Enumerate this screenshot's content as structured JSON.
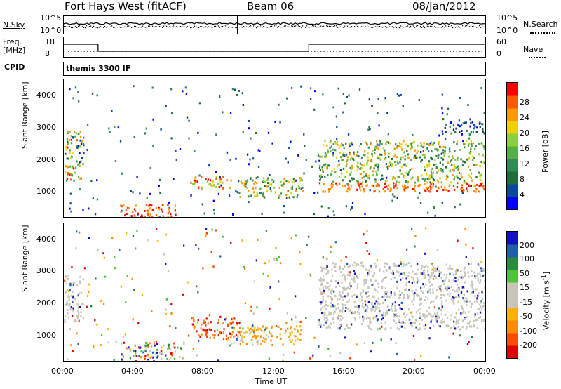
{
  "header": {
    "title": "Fort Hays West (fitACF)",
    "beam": "Beam 06",
    "date": "08/Jan/2012"
  },
  "top_strip": {
    "left_label_1": "N.Sky",
    "left_scale_hi": "10^5",
    "left_scale_lo": "10^0",
    "right_label_1": "N.Search",
    "right_scale_hi": "10^5",
    "right_scale_lo": "10^0",
    "freq_label_1": "Freq.",
    "freq_label_2": "[MHz]",
    "freq_hi": "18",
    "freq_lo": "8",
    "nave_label": "Nave",
    "nave_hi": "60",
    "nave_lo": "0",
    "cpid_label": "CPID",
    "cpid_text": "themis 3300 IF"
  },
  "colors": {
    "power": [
      "#0000ff",
      "#0a48a0",
      "#1f6e3a",
      "#2f8a54",
      "#55b04a",
      "#8cd13b",
      "#f0d000",
      "#ff9800",
      "#ff5a00",
      "#ff0000"
    ],
    "velocity": [
      "#e00000",
      "#ff4a00",
      "#ff8c00",
      "#ffb000",
      "#c8c4b8",
      "#c8c4b8",
      "#4fc23a",
      "#2c8a3c",
      "#1f5fa8",
      "#1010c8"
    ]
  },
  "chart_data": [
    {
      "type": "heatmap",
      "title": "",
      "xlabel": "Time UT",
      "ylabel": "Slant Range [km]",
      "xticks": [
        "00:00",
        "04:00",
        "08:00",
        "12:00",
        "16:00",
        "20:00",
        "00:00"
      ],
      "yticks": [
        "1000",
        "2000",
        "3000",
        "4000"
      ],
      "xlim_hours": [
        0,
        24
      ],
      "ylim_km": [
        180,
        4500
      ],
      "colorbar_label": "Power [dB]",
      "colorbar_ticks": [
        "4",
        "8",
        "12",
        "16",
        "20",
        "24",
        "28"
      ],
      "regions": [
        {
          "t0": 0.0,
          "t1": 1.1,
          "r0": 1350,
          "r1": 2900,
          "level": "mixed-high"
        },
        {
          "t0": 3.2,
          "t1": 6.5,
          "r0": 200,
          "r1": 600,
          "level": "high"
        },
        {
          "t0": 7.2,
          "t1": 9.5,
          "r0": 1100,
          "r1": 1500,
          "level": "mid-high"
        },
        {
          "t0": 10.0,
          "t1": 13.6,
          "r0": 800,
          "r1": 1450,
          "level": "mid"
        },
        {
          "t0": 14.5,
          "t1": 24.0,
          "r0": 1000,
          "r1": 2600,
          "level": "high-layer"
        },
        {
          "t0": 21.5,
          "t1": 24.0,
          "r0": 2800,
          "r1": 3200,
          "level": "low"
        }
      ]
    },
    {
      "type": "heatmap",
      "title": "",
      "xlabel": "Time UT",
      "ylabel": "Slant Range [km]",
      "xticks": [
        "00:00",
        "04:00",
        "08:00",
        "12:00",
        "16:00",
        "20:00",
        "00:00"
      ],
      "yticks": [
        "1000",
        "2000",
        "3000",
        "4000"
      ],
      "xlim_hours": [
        0,
        24
      ],
      "ylim_km": [
        180,
        4500
      ],
      "colorbar_label_1": "Velocity",
      "colorbar_label_2": "[m s",
      "colorbar_label_sup": "-1",
      "colorbar_label_3": "]",
      "colorbar_ticks": [
        "200",
        "100",
        "50",
        "15",
        "-15",
        "-50",
        "-100",
        "-200"
      ],
      "regions": [
        {
          "t0": 0.0,
          "t1": 1.1,
          "r0": 1400,
          "r1": 2900,
          "level": "ground-scatter"
        },
        {
          "t0": 3.2,
          "t1": 6.8,
          "r0": 200,
          "r1": 800,
          "level": "mixed"
        },
        {
          "t0": 7.2,
          "t1": 10.0,
          "r0": 900,
          "r1": 1550,
          "level": "negative-strong"
        },
        {
          "t0": 9.5,
          "t1": 13.5,
          "r0": 700,
          "r1": 1300,
          "level": "negative-weak"
        },
        {
          "t0": 14.5,
          "t1": 24.0,
          "r0": 1200,
          "r1": 3300,
          "level": "ground-scatter"
        }
      ]
    }
  ]
}
